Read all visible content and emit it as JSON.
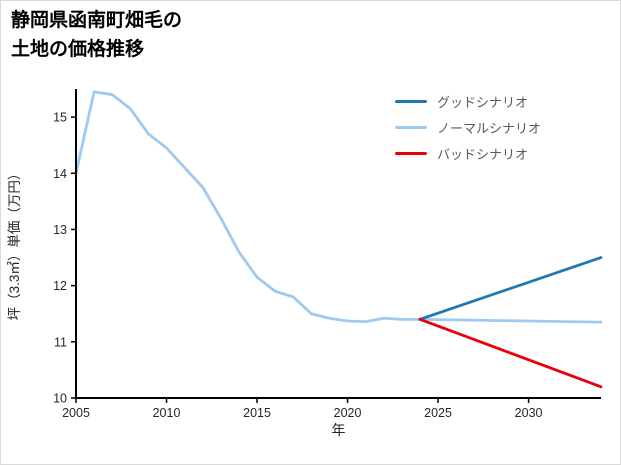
{
  "page": {
    "background": "#ffffff",
    "border_color": "#d9d9d9"
  },
  "chart_data": {
    "type": "line",
    "title": "静岡県函南町畑毛の土地の価格推移",
    "title_lines": [
      "静岡県函南町畑毛の",
      "土地の価格推移"
    ],
    "xlabel": "年",
    "ylabel": "坪（3.3㎡）単価（万円）",
    "xlim": [
      2005,
      2034
    ],
    "ylim": [
      10,
      15.5
    ],
    "xticks": [
      2005,
      2010,
      2015,
      2020,
      2025,
      2030
    ],
    "yticks": [
      10,
      11,
      12,
      13,
      14,
      15
    ],
    "axis_color": "#000000",
    "tick_label_color": "#262626",
    "legend_position": "upper right",
    "grid": false,
    "legend": [
      {
        "label": "グッドシナリオ",
        "color": "#1f77b4"
      },
      {
        "label": "ノーマルシナリオ",
        "color": "#9ecaf0"
      },
      {
        "label": "バッドシナリオ",
        "color": "#e8000b"
      }
    ],
    "series": [
      {
        "id": "normal",
        "name": "ノーマルシナリオ",
        "color": "#9ecaf0",
        "x": [
          2005,
          2006,
          2007,
          2008,
          2009,
          2010,
          2011,
          2012,
          2013,
          2014,
          2015,
          2016,
          2017,
          2018,
          2019,
          2020,
          2021,
          2022,
          2023,
          2024,
          2026,
          2028,
          2030,
          2032,
          2034
        ],
        "y": [
          14.0,
          15.45,
          15.4,
          15.15,
          14.7,
          14.45,
          14.1,
          13.75,
          13.2,
          12.6,
          12.15,
          11.9,
          11.8,
          11.5,
          11.42,
          11.37,
          11.36,
          11.42,
          11.4,
          11.4,
          11.39,
          11.38,
          11.37,
          11.36,
          11.35
        ]
      },
      {
        "id": "good",
        "name": "グッドシナリオ",
        "color": "#1f77b4",
        "x": [
          2024,
          2034
        ],
        "y": [
          11.4,
          12.5
        ]
      },
      {
        "id": "bad",
        "name": "バッドシナリオ",
        "color": "#e8000b",
        "x": [
          2024,
          2034
        ],
        "y": [
          11.4,
          10.2
        ]
      }
    ]
  }
}
